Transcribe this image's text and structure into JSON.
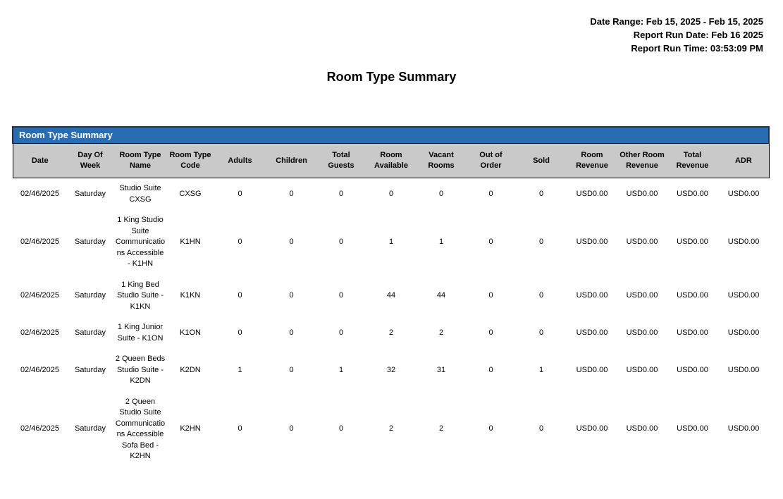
{
  "meta": {
    "date_range": "Date Range: Feb 15, 2025 - Feb 15, 2025",
    "report_run_date": "Report Run Date: Feb 16 2025",
    "report_run_time": "Report Run Time: 03:53:09 PM"
  },
  "page_title": "Room Type Summary",
  "table": {
    "section_title": "Room Type Summary",
    "columns": [
      "Date",
      "Day Of Week",
      "Room Type Name",
      "Room Type Code",
      "Adults",
      "Children",
      "Total Guests",
      "Room Available",
      "Vacant Rooms",
      "Out of Order",
      "Sold",
      "Room Revenue",
      "Other Room Revenue",
      "Total Revenue",
      "ADR"
    ],
    "rows": [
      [
        "02/46/2025",
        "Saturday",
        "Studio Suite CXSG",
        "CXSG",
        "0",
        "0",
        "0",
        "0",
        "0",
        "0",
        "0",
        "USD0.00",
        "USD0.00",
        "USD0.00",
        "USD0.00"
      ],
      [
        "02/46/2025",
        "Saturday",
        "1 King Studio Suite Communications Accessible - K1HN",
        "K1HN",
        "0",
        "0",
        "0",
        "1",
        "1",
        "0",
        "0",
        "USD0.00",
        "USD0.00",
        "USD0.00",
        "USD0.00"
      ],
      [
        "02/46/2025",
        "Saturday",
        "1 King Bed Studio Suite - K1KN",
        "K1KN",
        "0",
        "0",
        "0",
        "44",
        "44",
        "0",
        "0",
        "USD0.00",
        "USD0.00",
        "USD0.00",
        "USD0.00"
      ],
      [
        "02/46/2025",
        "Saturday",
        "1 King Junior Suite - K1ON",
        "K1ON",
        "0",
        "0",
        "0",
        "2",
        "2",
        "0",
        "0",
        "USD0.00",
        "USD0.00",
        "USD0.00",
        "USD0.00"
      ],
      [
        "02/46/2025",
        "Saturday",
        "2 Queen Beds Studio Suite - K2DN",
        "K2DN",
        "1",
        "0",
        "1",
        "32",
        "31",
        "0",
        "1",
        "USD0.00",
        "USD0.00",
        "USD0.00",
        "USD0.00"
      ],
      [
        "02/46/2025",
        "Saturday",
        "2 Queen Studio Suite Communications Accessible Sofa Bed - K2HN",
        "K2HN",
        "0",
        "0",
        "0",
        "2",
        "2",
        "0",
        "0",
        "USD0.00",
        "USD0.00",
        "USD0.00",
        "USD0.00"
      ]
    ]
  },
  "colors": {
    "band_blue": "#2a6cb3",
    "band_border": "#16365c",
    "header_gray": "#c9c9c9"
  }
}
